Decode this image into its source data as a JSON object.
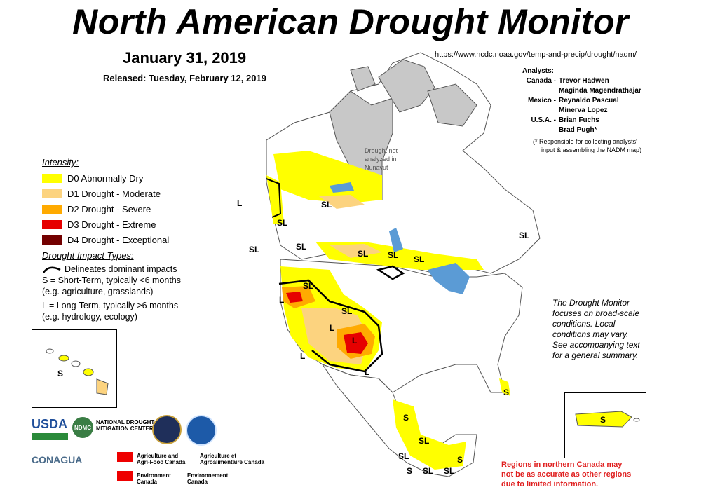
{
  "header": {
    "title": "North American Drought Monitor",
    "date": "January 31, 2019",
    "released": "Released: Tuesday, February 12, 2019",
    "url": "https://www.ncdc.noaa.gov/temp-and-precip/drought/nadm/"
  },
  "analysts": {
    "heading": "Analysts:",
    "rows": [
      {
        "country": "Canada -",
        "name": "Trevor Hadwen"
      },
      {
        "country": "",
        "name": "Maginda Magendrathajar"
      },
      {
        "country": "Mexico -",
        "name": "Reynaldo Pascual"
      },
      {
        "country": "",
        "name": "Minerva Lopez"
      },
      {
        "country": "U.S.A. -",
        "name": "Brian Fuchs"
      },
      {
        "country": "",
        "name": "Brad Pugh*"
      }
    ],
    "note_line1": "(* Responsible for collecting analysts'",
    "note_line2": "input & assembling the NADM map)"
  },
  "legend": {
    "intensity_heading": "Intensity:",
    "levels": [
      {
        "label": "D0 Abnormally Dry",
        "color": "#ffff00"
      },
      {
        "label": "D1 Drought - Moderate",
        "color": "#fcd37f"
      },
      {
        "label": "D2 Drought - Severe",
        "color": "#ffaa00"
      },
      {
        "label": "D3 Drought - Extreme",
        "color": "#e60000"
      },
      {
        "label": "D4 Drought - Exceptional",
        "color": "#730000"
      }
    ],
    "impact_heading": "Drought Impact Types:",
    "delineates": "Delineates dominant impacts",
    "short_term": "S = Short-Term, typically <6 months",
    "short_term_eg": "(e.g. agriculture, grasslands)",
    "long_term": "L = Long-Term, typically >6 months",
    "long_term_eg": "(e.g. hydrology, ecology)"
  },
  "disclaimer": {
    "lines": [
      "The Drought Monitor",
      "focuses on broad-scale",
      "conditions. Local",
      "conditions may vary.",
      "See accompanying text",
      "for a general summary."
    ]
  },
  "northern_note": {
    "lines": [
      "Regions in northern Canada may",
      "not be as accurate as other regions",
      "due to limited information."
    ]
  },
  "map": {
    "grey_area_label_1": "Drought not",
    "grey_area_label_2": "analyzed in",
    "grey_area_label_3": "Nunavut",
    "labels": {
      "l_pacific": "L",
      "sl_bc": "SL",
      "sl_ab": "SL",
      "sl_pnw": "SL",
      "sl_sask": "SL",
      "sl_mb": "SL",
      "sl_on": "SL",
      "sl_north": "SL",
      "sl_east": "SL",
      "sl_id": "SL",
      "sl_co": "SL",
      "l_ca": "L",
      "l_nv": "L",
      "l_az": "L",
      "l_sw": "L",
      "l_tx": "L",
      "s_fl": "S",
      "s_mx": "S",
      "sl_mx1": "SL",
      "sl_mx2": "SL",
      "s_mx2": "S",
      "sl_mx3": "SL",
      "sl_mx4": "SL",
      "s_mx3": "S",
      "s_hawaii": "S",
      "s_pr": "S"
    }
  },
  "logos": {
    "usda": "USDA",
    "ndmc_badge": "NDMC",
    "ndmc_line1": "NATIONAL DROUGHT",
    "ndmc_line2": "MITIGATION CENTER",
    "conagua": "CONAGUA",
    "aafc_line1": "Agriculture and",
    "aafc_line2": "Agri-Food Canada",
    "aac_line1": "Agriculture et",
    "aac_line2": "Agroalimentaire Canada",
    "ec_line1": "Environment",
    "ec_line2": "Canada",
    "ec_fr_line1": "Environnement",
    "ec_fr_line2": "Canada"
  }
}
